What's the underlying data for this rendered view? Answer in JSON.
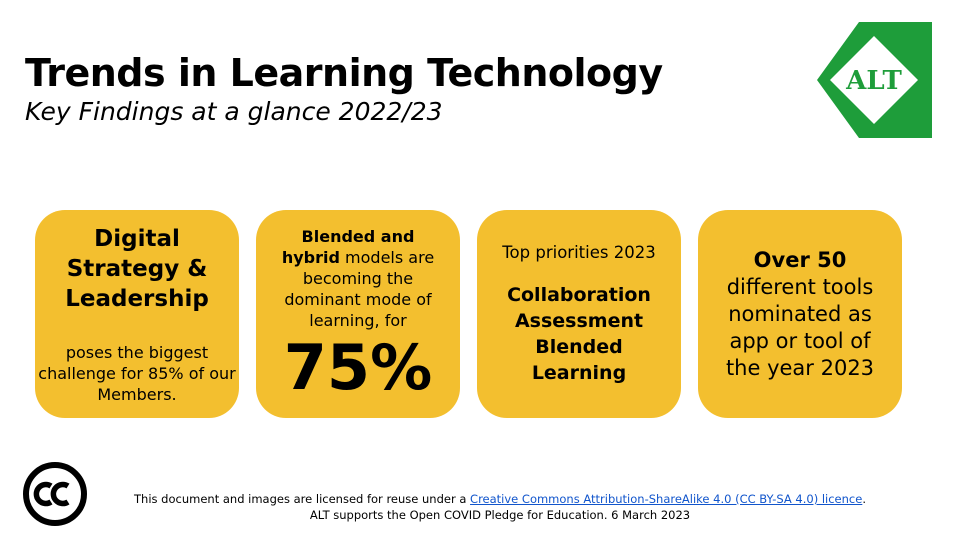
{
  "header": {
    "title": "Trends in Learning Technology",
    "subtitle": "Key Findings at a glance 2022/23"
  },
  "logo": {
    "text": "ALT",
    "icon": "alt-logo",
    "colors": {
      "green": "#1e9d3a",
      "white": "#ffffff"
    }
  },
  "cards": [
    {
      "heading_lines": [
        "Digital",
        "Strategy &",
        "Leadership"
      ],
      "body": "poses the biggest challenge for 85% of our Members."
    },
    {
      "bold1": "Blended and",
      "bold2": "hybrid",
      "text": " models are becoming the dominant mode of learning, for",
      "big": "75%"
    },
    {
      "top": "Top priorities 2023",
      "items": [
        "Collaboration",
        "Assessment",
        "Blended",
        "Learning"
      ]
    },
    {
      "bold": "Over 50",
      "text": "different tools nominated as app or tool of the year 2023"
    }
  ],
  "colors": {
    "card": "#f3bf2f",
    "link": "#1155cc"
  },
  "footer": {
    "icon": "creative-commons-icon",
    "line1_pre": "This document and images are licensed for reuse under a ",
    "line1_link": "Creative Commons Attribution-ShareAlike 4.0 (CC BY-SA 4.0) licence",
    "line1_post": ".",
    "line2": "ALT supports the Open COVID Pledge for Education. 6 March 2023"
  }
}
